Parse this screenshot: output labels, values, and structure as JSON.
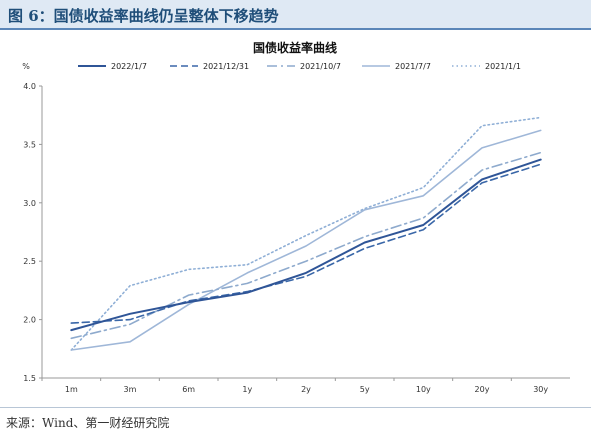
{
  "figure": {
    "title": "图 6：国债收益率曲线仍呈整体下移趋势",
    "source": "来源：Wind、第一财经研究院"
  },
  "chart_data": {
    "type": "line",
    "title": "国债收益率曲线",
    "ylabel": "%",
    "xlabel": "",
    "categories": [
      "1m",
      "3m",
      "6m",
      "1y",
      "2y",
      "5y",
      "10y",
      "20y",
      "30y"
    ],
    "yticks": [
      "4.0",
      "3.5",
      "3.0",
      "2.5",
      "2.0",
      "1.5"
    ],
    "ylim": [
      1.5,
      4.0
    ],
    "grid": false,
    "legend_position": "top",
    "series": [
      {
        "name": "2022/1/7",
        "color": "#2f5597",
        "dash": "solid",
        "values": [
          1.91,
          2.05,
          2.15,
          2.23,
          2.4,
          2.66,
          2.81,
          3.2,
          3.37
        ]
      },
      {
        "name": "2021/12/31",
        "color": "#3a67a8",
        "dash": "dash",
        "values": [
          1.97,
          2.0,
          2.16,
          2.24,
          2.37,
          2.61,
          2.77,
          3.17,
          3.33
        ]
      },
      {
        "name": "2021/10/7",
        "color": "#8eaacd",
        "dash": "dashdot",
        "values": [
          1.84,
          1.96,
          2.21,
          2.31,
          2.5,
          2.71,
          2.87,
          3.28,
          3.43
        ]
      },
      {
        "name": "2021/7/7",
        "color": "#9fb7d8",
        "dash": "solid",
        "values": [
          1.74,
          1.81,
          2.13,
          2.4,
          2.63,
          2.94,
          3.06,
          3.47,
          3.62
        ]
      },
      {
        "name": "2021/1/1",
        "color": "#8fafd6",
        "dash": "dot",
        "values": [
          1.74,
          2.29,
          2.43,
          2.47,
          2.72,
          2.95,
          3.13,
          3.66,
          3.73
        ]
      }
    ]
  }
}
